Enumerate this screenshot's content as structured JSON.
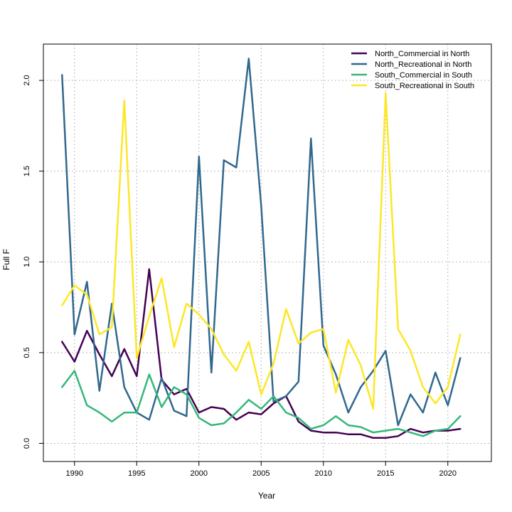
{
  "chart_data": {
    "type": "line",
    "title": "",
    "xlabel": "Year",
    "ylabel": "Full F",
    "xlim": [
      1987.5,
      2023.5
    ],
    "ylim": [
      -0.1,
      2.2
    ],
    "x_ticks": [
      1990,
      1995,
      2000,
      2005,
      2010,
      2015,
      2020
    ],
    "y_ticks": [
      0.0,
      0.5,
      1.0,
      1.5,
      2.0
    ],
    "y_tick_labels": [
      "0.0",
      "0.5",
      "1.0",
      "1.5",
      "2.0"
    ],
    "grid": true,
    "legend_position": "top-right",
    "x": [
      1989,
      1990,
      1991,
      1992,
      1993,
      1994,
      1995,
      1996,
      1997,
      1998,
      1999,
      2000,
      2001,
      2002,
      2003,
      2004,
      2005,
      2006,
      2007,
      2008,
      2009,
      2010,
      2011,
      2012,
      2013,
      2014,
      2015,
      2016,
      2017,
      2018,
      2019,
      2020,
      2021
    ],
    "series": [
      {
        "name": "North_Commercial in North",
        "color": "#440154",
        "values": [
          0.56,
          0.45,
          0.62,
          0.49,
          0.37,
          0.52,
          0.37,
          0.96,
          0.35,
          0.27,
          0.3,
          0.17,
          0.2,
          0.19,
          0.13,
          0.17,
          0.16,
          0.22,
          0.26,
          0.12,
          0.07,
          0.06,
          0.06,
          0.05,
          0.05,
          0.03,
          0.03,
          0.04,
          0.08,
          0.06,
          0.07,
          0.07,
          0.08
        ]
      },
      {
        "name": "North_Recreational in North",
        "color": "#31688E",
        "values": [
          2.03,
          0.6,
          0.89,
          0.29,
          0.77,
          0.31,
          0.17,
          0.13,
          0.36,
          0.18,
          0.15,
          1.58,
          0.39,
          1.56,
          1.52,
          2.12,
          1.31,
          0.23,
          0.26,
          0.34,
          1.68,
          0.54,
          0.38,
          0.17,
          0.31,
          0.4,
          0.51,
          0.1,
          0.27,
          0.17,
          0.39,
          0.21,
          0.47
        ]
      },
      {
        "name": "South_Commercial in South",
        "color": "#35B779",
        "values": [
          0.31,
          0.4,
          0.21,
          0.17,
          0.12,
          0.17,
          0.17,
          0.38,
          0.2,
          0.31,
          0.27,
          0.14,
          0.1,
          0.11,
          0.17,
          0.24,
          0.19,
          0.26,
          0.17,
          0.14,
          0.08,
          0.1,
          0.15,
          0.1,
          0.09,
          0.06,
          0.07,
          0.08,
          0.06,
          0.04,
          0.07,
          0.08,
          0.15
        ]
      },
      {
        "name": "South_Recreational in South",
        "color": "#FDE725",
        "values": [
          0.76,
          0.87,
          0.82,
          0.6,
          0.64,
          1.89,
          0.47,
          0.7,
          0.91,
          0.53,
          0.77,
          0.71,
          0.63,
          0.49,
          0.4,
          0.56,
          0.27,
          0.44,
          0.74,
          0.55,
          0.61,
          0.63,
          0.28,
          0.57,
          0.43,
          0.19,
          1.93,
          0.63,
          0.51,
          0.31,
          0.22,
          0.31,
          0.6
        ]
      }
    ]
  }
}
